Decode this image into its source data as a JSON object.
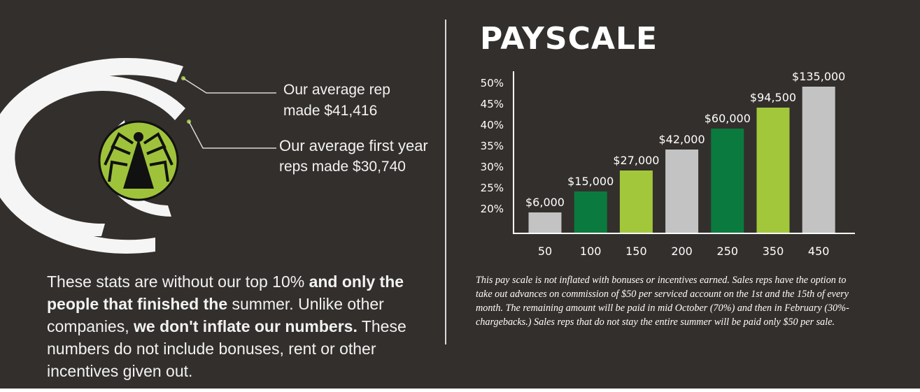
{
  "stats": {
    "average_rep_line1": "Our average rep",
    "average_rep_line2": "made $41,416",
    "first_year_line1": "Our average first year",
    "first_year_line2": "reps made $30,740"
  },
  "disclaimer": {
    "p1": "These stats are without our top 10% ",
    "b1": "and only the people that finished the",
    "p2": " summer. Unlike other companies, ",
    "b2": "we don't inflate our numbers.",
    "p3": " These numbers do not include bonuses, rent or other incentives given out."
  },
  "title": "PAYSCALE",
  "note": "This pay scale is not inflated with bonuses or incentives earned. Sales reps have the option to take out advances on commission of $50 per serviced account on the 1st and the 15th of every month. The remaining amount will be paid in mid October (70%) and then in February (30%- chargebacks.) Sales reps that do not stay the entire summer will be paid only $50 per sale.",
  "colors": {
    "background": "#332f2c",
    "gray": "#c3c3c3",
    "dark_green": "#0b7a3e",
    "light_green": "#a2c73b",
    "logo_green": "#9ec33b",
    "arc": "#f5f5f5"
  },
  "icons": {
    "logo": "spider-logo-icon"
  },
  "chart_data": {
    "type": "bar",
    "title": "PAYSCALE",
    "xlabel": "",
    "ylabel": "",
    "categories": [
      "50",
      "100",
      "150",
      "200",
      "250",
      "350",
      "450"
    ],
    "values": [
      19,
      24,
      29,
      34,
      39,
      44,
      49
    ],
    "value_labels": [
      "$6,000",
      "$15,000",
      "$27,000",
      "$42,000",
      "$60,000",
      "$94,500",
      "$135,000"
    ],
    "bar_colors": [
      "#c3c3c3",
      "#0b7a3e",
      "#a2c73b",
      "#c3c3c3",
      "#0b7a3e",
      "#a2c73b",
      "#c3c3c3"
    ],
    "yticks": [
      20,
      25,
      30,
      35,
      40,
      45,
      50
    ],
    "ytick_labels": [
      "20%",
      "25%",
      "30%",
      "35%",
      "40%",
      "45%",
      "50%"
    ],
    "ylim": [
      14,
      53
    ],
    "grid": false
  }
}
